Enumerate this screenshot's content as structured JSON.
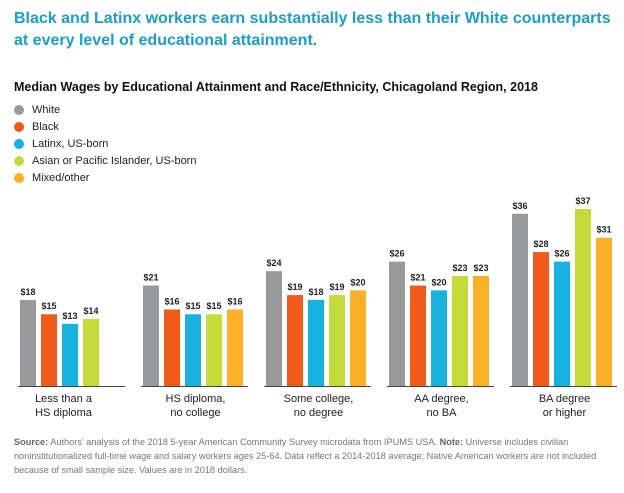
{
  "headline": "Black and Latinx workers earn substantially less than their White counterparts at every level of educational attainment.",
  "chart_data": {
    "type": "bar",
    "title": "Median Wages by Educational Attainment and Race/Ethnicity, Chicagoland Region, 2018",
    "xlabel": "",
    "ylabel": "",
    "ylim": [
      0,
      37
    ],
    "grid": false,
    "legend_position": "top-left",
    "categories": [
      "Less than a\nHS diploma",
      "HS diploma,\nno college",
      "Some college,\nno degree",
      "AA degree,\nno BA",
      "BA degree\nor higher"
    ],
    "series": [
      {
        "name": "White",
        "color": "#97999b",
        "values": [
          18,
          21,
          24,
          26,
          36
        ],
        "labels": [
          "$18",
          "$21",
          "$24",
          "$26",
          "$36"
        ]
      },
      {
        "name": "Black",
        "color": "#f05a1a",
        "values": [
          15,
          16,
          19,
          21,
          28
        ],
        "labels": [
          "$15",
          "$16",
          "$19",
          "$21",
          "$28"
        ]
      },
      {
        "name": "Latinx, US-born",
        "color": "#17b2de",
        "values": [
          13,
          15,
          18,
          20,
          26
        ],
        "labels": [
          "$13",
          "$15",
          "$18",
          "$20",
          "$26"
        ]
      },
      {
        "name": "Asian or Pacific Islander, US-born",
        "color": "#c4dc3a",
        "values": [
          14,
          15,
          19,
          23,
          37
        ],
        "labels": [
          "$14",
          "$15",
          "$19",
          "$23",
          "$37"
        ]
      },
      {
        "name": "Mixed/other",
        "color": "#fbb028",
        "values": [
          null,
          16,
          20,
          23,
          31
        ],
        "labels": [
          null,
          "$16",
          "$20",
          "$23",
          "$31"
        ]
      }
    ]
  },
  "source": {
    "source_label": "Source:",
    "source_text": " Authors' analysis of the 2018 5-year American Community Survey microdata from IPUMS USA. ",
    "note_label": "Note:",
    "note_text": " Universe includes civilian noninstitutionalized full-time wage and salary workers ages 25-64. Data reflect a 2014-2018 average; Native American workers are not included because of small sample size. Values are in 2018 dollars."
  }
}
